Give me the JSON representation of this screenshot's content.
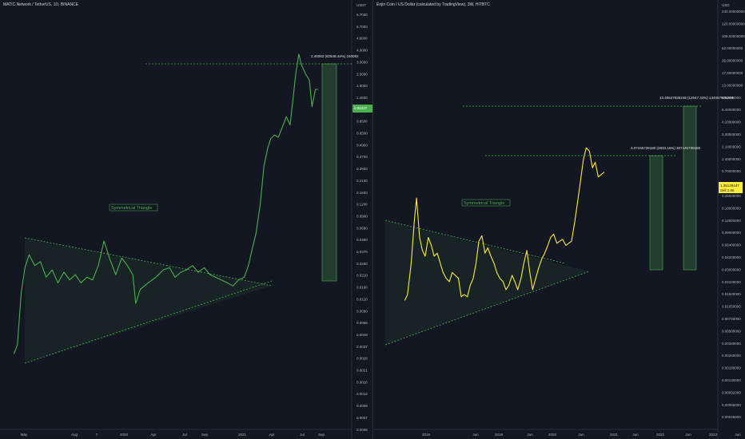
{
  "chart_data": [
    {
      "type": "line",
      "title": "MATIC Network / TetherUS, 1D, BINANCE",
      "currency": "USDT",
      "scale": "log",
      "line_color": "#4caf50",
      "price_axis_ticks": [
        "6.7000",
        "5.7000",
        "4.8000",
        "4.0000",
        "3.0000",
        "2.5000",
        "1.9000",
        "1.4500",
        "1.1000",
        "0.8500",
        "0.6500",
        "0.4900",
        "0.3700",
        "0.2800",
        "0.2100",
        "0.1600",
        "0.1200",
        "0.0900",
        "0.0680",
        "0.0490",
        "0.0370",
        "0.0280",
        "0.0210",
        "0.0160",
        "0.0120",
        "0.0090",
        "0.0065",
        "0.0049",
        "0.0037",
        "0.0028",
        "0.0021",
        "0.0016",
        "0.0012",
        "0.0009",
        "0.0007",
        "0.0006"
      ],
      "time_axis_ticks": [
        "May",
        "Aug",
        "7",
        "2020",
        "Apr",
        "Jul",
        "Sep",
        "2021",
        "Apr",
        "Jul",
        "Sep"
      ],
      "current_price": "0.95437",
      "annotation": "2.40082 (62548.44%) 240082",
      "pattern_label": "Symmetrical Triangle",
      "ylim": [
        0.0006,
        6.7
      ],
      "series": [
        {
          "x": [
            "2019-04-26",
            "2019-05-05",
            "2019-05-15",
            "2019-05-25",
            "2019-06-05",
            "2019-06-20",
            "2019-07-05",
            "2019-07-20",
            "2019-08-05",
            "2019-08-20",
            "2019-09-05",
            "2019-09-20",
            "2019-10-05",
            "2019-10-20",
            "2019-11-05",
            "2019-11-20",
            "2019-12-05",
            "2019-12-20",
            "2020-01-05",
            "2020-01-20",
            "2020-02-05",
            "2020-02-20",
            "2020-03-05",
            "2020-03-13",
            "2020-03-25",
            "2020-04-15",
            "2020-05-05",
            "2020-05-25",
            "2020-06-10",
            "2020-06-25",
            "2020-07-10",
            "2020-07-25",
            "2020-08-10",
            "2020-08-25",
            "2020-09-10",
            "2020-09-25",
            "2020-10-10",
            "2020-10-25",
            "2020-11-10",
            "2020-11-25",
            "2020-12-10",
            "2020-12-25",
            "2021-01-05",
            "2021-01-15",
            "2021-01-25",
            "2021-02-05",
            "2021-02-15",
            "2021-02-25",
            "2021-03-05",
            "2021-03-15",
            "2021-03-25",
            "2021-04-05",
            "2021-04-15",
            "2021-04-25",
            "2021-05-05",
            "2021-05-10",
            "2021-05-18",
            "2021-05-25",
            "2021-06-05",
            "2021-06-15",
            "2021-06-22",
            "2021-07-01",
            "2021-07-08"
          ],
          "values": [
            0.0031,
            0.0038,
            0.012,
            0.021,
            0.028,
            0.022,
            0.024,
            0.017,
            0.02,
            0.015,
            0.019,
            0.016,
            0.018,
            0.015,
            0.017,
            0.016,
            0.022,
            0.038,
            0.025,
            0.018,
            0.026,
            0.022,
            0.018,
            0.0095,
            0.013,
            0.015,
            0.017,
            0.02,
            0.021,
            0.017,
            0.019,
            0.02,
            0.022,
            0.019,
            0.021,
            0.018,
            0.017,
            0.016,
            0.015,
            0.014,
            0.016,
            0.017,
            0.022,
            0.032,
            0.045,
            0.085,
            0.2,
            0.3,
            0.37,
            0.4,
            0.38,
            0.48,
            0.6,
            0.5,
            1.05,
            1.55,
            2.4,
            1.9,
            1.55,
            1.35,
            0.75,
            1.1,
            1.1
          ]
        }
      ]
    },
    {
      "type": "line",
      "title": "Enjin Coin / US Dollar (calculated by TradingView), 3W, HITBTC",
      "currency": "USD",
      "scale": "log",
      "line_color": "#ffeb3b",
      "price_axis_ticks": [
        "240.00000000",
        "120.00000000",
        "106.00000000",
        "52.00000000",
        "26.00000000",
        "17.00000000",
        "13.00000000",
        "8.50000000",
        "6.40000000",
        "4.20000000",
        "3.00000000",
        "2.10000000",
        "1.40000000",
        "0.70000000",
        "0.37000000",
        "0.26000000",
        "0.18000000",
        "0.12500000",
        "0.09000000",
        "0.06400000",
        "0.04200000",
        "0.03000000",
        "0.02100000",
        "0.01500000",
        "0.01050000",
        "0.00740000",
        "0.00500000",
        "0.00380000",
        "0.00260000",
        "0.00180000",
        "0.00130000",
        "0.00092000",
        "0.00065000",
        "0.00046000"
      ],
      "time_axis_ticks": [
        "2018",
        "Jun",
        "2019",
        "Jun",
        "2020",
        "Jun",
        "2021",
        "Jun",
        "2022",
        "Jun",
        "2023",
        "Jun"
      ],
      "current_price": "1.35128447",
      "current_price_sub": "Sell 1.65",
      "annotations": [
        "13.40647835248 (12547.33%) 13406783524B",
        "3.07445739180 (2833.16%) 307445739180"
      ],
      "pattern_label": "Symmetrical Triangle",
      "ylim": [
        0.00046,
        240
      ],
      "series": [
        {
          "x": [
            "2017-11-01",
            "2017-11-20",
            "2017-12-15",
            "2018-01-05",
            "2018-01-20",
            "2018-02-10",
            "2018-03-01",
            "2018-03-20",
            "2018-04-10",
            "2018-05-01",
            "2018-05-20",
            "2018-06-10",
            "2018-07-01",
            "2018-07-20",
            "2018-08-10",
            "2018-09-01",
            "2018-09-20",
            "2018-10-10",
            "2018-11-01",
            "2018-11-20",
            "2018-12-10",
            "2019-01-01",
            "2019-01-20",
            "2019-02-10",
            "2019-03-01",
            "2019-03-20",
            "2019-04-10",
            "2019-05-01",
            "2019-05-20",
            "2019-06-10",
            "2019-07-01",
            "2019-07-20",
            "2019-08-10",
            "2019-09-01",
            "2019-09-20",
            "2019-10-10",
            "2019-11-01",
            "2019-11-20",
            "2019-12-10",
            "2020-01-01",
            "2020-01-20",
            "2020-02-10",
            "2020-03-01",
            "2020-03-20",
            "2020-04-10",
            "2020-05-01",
            "2020-05-20",
            "2020-06-10",
            "2020-07-01",
            "2020-07-20",
            "2020-08-10",
            "2020-09-01",
            "2020-09-20",
            "2020-10-10",
            "2020-11-01",
            "2020-11-20",
            "2020-12-10",
            "2021-01-01",
            "2021-01-20",
            "2021-02-10",
            "2021-03-01",
            "2021-03-20",
            "2021-04-10",
            "2021-05-01",
            "2021-05-20",
            "2021-06-10",
            "2021-07-01",
            "2021-07-20"
          ],
          "values": [
            0.025,
            0.03,
            0.08,
            0.3,
            0.62,
            0.18,
            0.12,
            0.1,
            0.18,
            0.14,
            0.1,
            0.11,
            0.08,
            0.06,
            0.05,
            0.045,
            0.06,
            0.055,
            0.05,
            0.028,
            0.03,
            0.028,
            0.04,
            0.05,
            0.08,
            0.16,
            0.19,
            0.11,
            0.13,
            0.1,
            0.08,
            0.06,
            0.05,
            0.045,
            0.035,
            0.04,
            0.055,
            0.045,
            0.035,
            0.05,
            0.08,
            0.12,
            0.06,
            0.035,
            0.05,
            0.07,
            0.09,
            0.11,
            0.14,
            0.18,
            0.2,
            0.15,
            0.16,
            0.17,
            0.14,
            0.15,
            0.16,
            0.3,
            0.55,
            1.1,
            2.1,
            3.0,
            2.7,
            1.6,
            1.9,
            1.2,
            1.3,
            1.4
          ]
        }
      ]
    }
  ]
}
